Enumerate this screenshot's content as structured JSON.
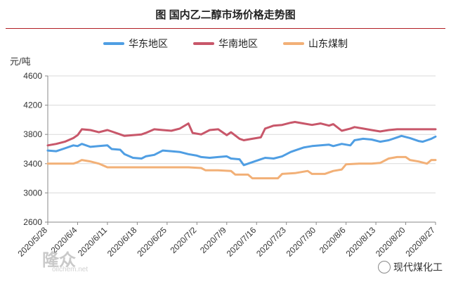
{
  "chart_data": {
    "type": "line",
    "title": "图  国内乙二醇市场价格走势图",
    "ylabel": "元/吨",
    "ylim": [
      2600,
      4600
    ],
    "yticks": [
      2600,
      3000,
      3400,
      3800,
      4200,
      4600
    ],
    "xticks": [
      "2020/5/28",
      "2020/6/4",
      "2020/6/11",
      "2020/6/18",
      "2020/6/25",
      "2020/7/2",
      "2020/7/9",
      "2020/7/16",
      "2020/7/23",
      "2020/7/30",
      "2020/8/6",
      "2020/8/13",
      "2020/8/20",
      "2020/8/27"
    ],
    "x_start": "2020/5/28",
    "x_end": "2020/8/27",
    "legend_position": "top",
    "series": [
      {
        "name": "华东地区",
        "color": "#4f9ee3",
        "points": [
          [
            "2020/5/28",
            3580
          ],
          [
            "2020/5/30",
            3570
          ],
          [
            "2020/6/1",
            3610
          ],
          [
            "2020/6/3",
            3650
          ],
          [
            "2020/6/4",
            3640
          ],
          [
            "2020/6/5",
            3670
          ],
          [
            "2020/6/7",
            3630
          ],
          [
            "2020/6/9",
            3640
          ],
          [
            "2020/6/11",
            3650
          ],
          [
            "2020/6/12",
            3600
          ],
          [
            "2020/6/14",
            3590
          ],
          [
            "2020/6/15",
            3530
          ],
          [
            "2020/6/17",
            3480
          ],
          [
            "2020/6/19",
            3470
          ],
          [
            "2020/6/20",
            3500
          ],
          [
            "2020/6/22",
            3520
          ],
          [
            "2020/6/24",
            3580
          ],
          [
            "2020/6/26",
            3570
          ],
          [
            "2020/6/28",
            3560
          ],
          [
            "2020/6/30",
            3530
          ],
          [
            "2020/7/2",
            3510
          ],
          [
            "2020/7/3",
            3490
          ],
          [
            "2020/7/5",
            3480
          ],
          [
            "2020/7/7",
            3490
          ],
          [
            "2020/7/9",
            3500
          ],
          [
            "2020/7/10",
            3470
          ],
          [
            "2020/7/12",
            3460
          ],
          [
            "2020/7/13",
            3380
          ],
          [
            "2020/7/15",
            3420
          ],
          [
            "2020/7/17",
            3460
          ],
          [
            "2020/7/18",
            3480
          ],
          [
            "2020/7/20",
            3470
          ],
          [
            "2020/7/22",
            3500
          ],
          [
            "2020/7/24",
            3560
          ],
          [
            "2020/7/25",
            3580
          ],
          [
            "2020/7/27",
            3620
          ],
          [
            "2020/7/29",
            3640
          ],
          [
            "2020/7/31",
            3650
          ],
          [
            "2020/8/2",
            3660
          ],
          [
            "2020/8/3",
            3640
          ],
          [
            "2020/8/5",
            3670
          ],
          [
            "2020/8/7",
            3650
          ],
          [
            "2020/8/8",
            3720
          ],
          [
            "2020/8/10",
            3740
          ],
          [
            "2020/8/12",
            3730
          ],
          [
            "2020/8/14",
            3700
          ],
          [
            "2020/8/16",
            3720
          ],
          [
            "2020/8/18",
            3760
          ],
          [
            "2020/8/19",
            3780
          ],
          [
            "2020/8/21",
            3750
          ],
          [
            "2020/8/23",
            3710
          ],
          [
            "2020/8/24",
            3700
          ],
          [
            "2020/8/25",
            3720
          ],
          [
            "2020/8/26",
            3740
          ],
          [
            "2020/8/27",
            3770
          ]
        ]
      },
      {
        "name": "华南地区",
        "color": "#c8576a",
        "points": [
          [
            "2020/5/28",
            3650
          ],
          [
            "2020/5/30",
            3670
          ],
          [
            "2020/6/1",
            3700
          ],
          [
            "2020/6/3",
            3750
          ],
          [
            "2020/6/4",
            3790
          ],
          [
            "2020/6/5",
            3870
          ],
          [
            "2020/6/7",
            3860
          ],
          [
            "2020/6/9",
            3830
          ],
          [
            "2020/6/11",
            3860
          ],
          [
            "2020/6/12",
            3840
          ],
          [
            "2020/6/14",
            3800
          ],
          [
            "2020/6/15",
            3780
          ],
          [
            "2020/6/17",
            3790
          ],
          [
            "2020/6/19",
            3800
          ],
          [
            "2020/6/20",
            3820
          ],
          [
            "2020/6/22",
            3870
          ],
          [
            "2020/6/24",
            3860
          ],
          [
            "2020/6/26",
            3850
          ],
          [
            "2020/6/28",
            3880
          ],
          [
            "2020/6/30",
            3950
          ],
          [
            "2020/7/1",
            3820
          ],
          [
            "2020/7/3",
            3800
          ],
          [
            "2020/7/5",
            3860
          ],
          [
            "2020/7/7",
            3870
          ],
          [
            "2020/7/9",
            3790
          ],
          [
            "2020/7/10",
            3830
          ],
          [
            "2020/7/12",
            3740
          ],
          [
            "2020/7/13",
            3720
          ],
          [
            "2020/7/15",
            3740
          ],
          [
            "2020/7/17",
            3760
          ],
          [
            "2020/7/18",
            3880
          ],
          [
            "2020/7/20",
            3920
          ],
          [
            "2020/7/22",
            3930
          ],
          [
            "2020/7/24",
            3960
          ],
          [
            "2020/7/25",
            3970
          ],
          [
            "2020/7/27",
            3950
          ],
          [
            "2020/7/29",
            3930
          ],
          [
            "2020/7/31",
            3950
          ],
          [
            "2020/8/2",
            3920
          ],
          [
            "2020/8/3",
            3940
          ],
          [
            "2020/8/5",
            3850
          ],
          [
            "2020/8/7",
            3880
          ],
          [
            "2020/8/8",
            3900
          ],
          [
            "2020/8/10",
            3880
          ],
          [
            "2020/8/12",
            3860
          ],
          [
            "2020/8/14",
            3840
          ],
          [
            "2020/8/16",
            3860
          ],
          [
            "2020/8/18",
            3870
          ],
          [
            "2020/8/21",
            3870
          ],
          [
            "2020/8/24",
            3870
          ],
          [
            "2020/8/27",
            3870
          ]
        ]
      },
      {
        "name": "山东煤制",
        "color": "#f2b077",
        "points": [
          [
            "2020/5/28",
            3400
          ],
          [
            "2020/5/31",
            3400
          ],
          [
            "2020/6/3",
            3400
          ],
          [
            "2020/6/4",
            3420
          ],
          [
            "2020/6/5",
            3450
          ],
          [
            "2020/6/7",
            3430
          ],
          [
            "2020/6/9",
            3400
          ],
          [
            "2020/6/11",
            3350
          ],
          [
            "2020/6/14",
            3350
          ],
          [
            "2020/6/18",
            3350
          ],
          [
            "2020/6/22",
            3350
          ],
          [
            "2020/6/26",
            3350
          ],
          [
            "2020/6/30",
            3350
          ],
          [
            "2020/7/3",
            3340
          ],
          [
            "2020/7/4",
            3310
          ],
          [
            "2020/7/7",
            3310
          ],
          [
            "2020/7/10",
            3300
          ],
          [
            "2020/7/11",
            3250
          ],
          [
            "2020/7/14",
            3250
          ],
          [
            "2020/7/15",
            3200
          ],
          [
            "2020/7/18",
            3200
          ],
          [
            "2020/7/21",
            3200
          ],
          [
            "2020/7/22",
            3260
          ],
          [
            "2020/7/25",
            3270
          ],
          [
            "2020/7/28",
            3300
          ],
          [
            "2020/7/29",
            3260
          ],
          [
            "2020/8/1",
            3260
          ],
          [
            "2020/8/3",
            3300
          ],
          [
            "2020/8/5",
            3320
          ],
          [
            "2020/8/6",
            3390
          ],
          [
            "2020/8/9",
            3400
          ],
          [
            "2020/8/12",
            3400
          ],
          [
            "2020/8/14",
            3410
          ],
          [
            "2020/8/16",
            3470
          ],
          [
            "2020/8/18",
            3490
          ],
          [
            "2020/8/20",
            3490
          ],
          [
            "2020/8/21",
            3450
          ],
          [
            "2020/8/23",
            3430
          ],
          [
            "2020/8/25",
            3400
          ],
          [
            "2020/8/26",
            3450
          ],
          [
            "2020/8/27",
            3450
          ]
        ]
      }
    ]
  },
  "watermark": {
    "left_text": "隆众",
    "left_subtext": "oilchem.net",
    "right_text": "现代煤化工"
  }
}
